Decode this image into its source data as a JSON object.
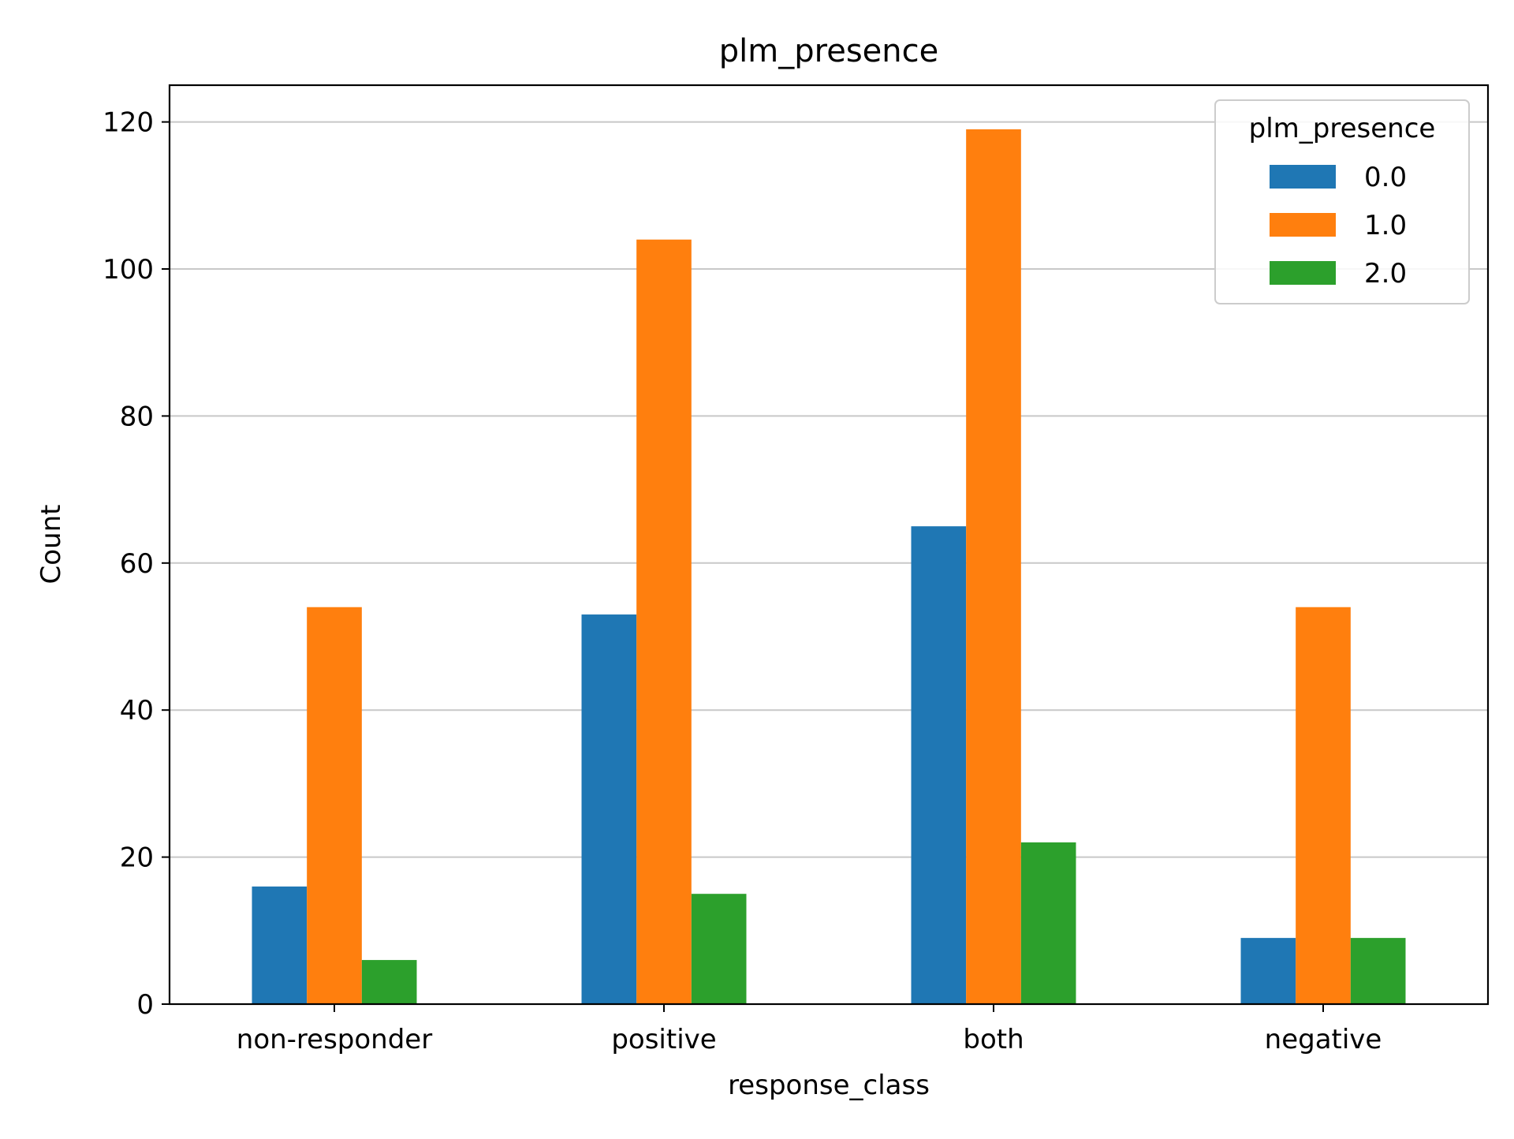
{
  "chart_data": {
    "type": "bar",
    "title": "plm_presence",
    "xlabel": "response_class",
    "ylabel": "Count",
    "categories": [
      "non-responder",
      "positive",
      "both",
      "negative"
    ],
    "series": [
      {
        "name": "0.0",
        "values": [
          16,
          53,
          65,
          9
        ],
        "color": "#1f77b4"
      },
      {
        "name": "1.0",
        "values": [
          54,
          104,
          119,
          54
        ],
        "color": "#ff7f0e"
      },
      {
        "name": "2.0",
        "values": [
          6,
          15,
          22,
          9
        ],
        "color": "#2ca02c"
      }
    ],
    "ylim": [
      0,
      125
    ],
    "yticks": [
      0,
      20,
      40,
      60,
      80,
      100,
      120
    ],
    "grid": "horizontal",
    "legend": {
      "title": "plm_presence",
      "placement": "top-right"
    }
  }
}
